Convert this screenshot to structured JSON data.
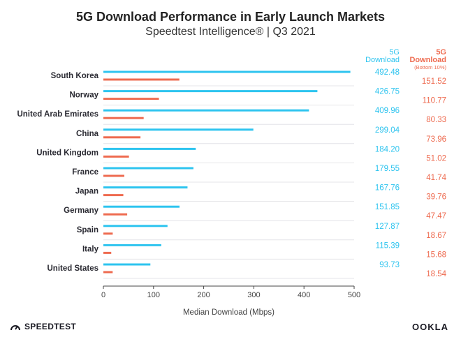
{
  "chart_data": {
    "type": "bar",
    "title": "5G Download Performance in Early Launch Markets",
    "subtitle": "Speedtest Intelligence® | Q3 2021",
    "categories": [
      "South Korea",
      "Norway",
      "United Arab Emirates",
      "China",
      "United Kingdom",
      "France",
      "Japan",
      "Germany",
      "Spain",
      "Italy",
      "United States"
    ],
    "series": [
      {
        "name": "5G Download",
        "color": "#2ec4ef",
        "values": [
          492.48,
          426.75,
          409.96,
          299.04,
          184.2,
          179.55,
          167.76,
          151.85,
          127.87,
          115.39,
          93.73
        ],
        "labels": [
          "492.48",
          "426.75",
          "409.96",
          "299.04",
          "184.20",
          "179.55",
          "167.76",
          "151.85",
          "127.87",
          "115.39",
          "93.73"
        ]
      },
      {
        "name": "5G Download",
        "name_note": "(Bottom 10%)",
        "color": "#ee6b50",
        "values": [
          151.52,
          110.77,
          80.33,
          73.96,
          51.02,
          41.74,
          39.76,
          47.47,
          18.67,
          15.68,
          18.54
        ],
        "labels": [
          "151.52",
          "110.77",
          "80.33",
          "73.96",
          "51.02",
          "41.74",
          "39.76",
          "47.47",
          "18.67",
          "15.68",
          "18.54"
        ]
      }
    ],
    "xlabel": "Median Download (Mbps)",
    "ylabel": "",
    "xlim": [
      0,
      500
    ],
    "xticks": [
      "0",
      "100",
      "200",
      "300",
      "400",
      "500"
    ],
    "orientation": "horizontal",
    "grid": true,
    "legend": "top-right"
  },
  "footer": {
    "brand_left": "SPEEDTEST",
    "brand_right": "OOKLA",
    "brand_left_icon": "speedometer-icon"
  }
}
